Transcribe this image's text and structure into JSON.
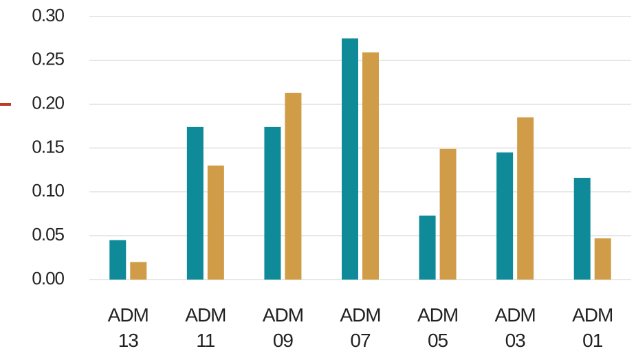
{
  "chart_data": {
    "type": "bar",
    "categories": [
      "ADM 13",
      "ADM 11",
      "ADM 09",
      "ADM 07",
      "ADM 05",
      "ADM 03",
      "ADM 01"
    ],
    "series": [
      {
        "color": "#0f8a98",
        "values": [
          0.045,
          0.174,
          0.174,
          0.275,
          0.073,
          0.145,
          0.116
        ]
      },
      {
        "color": "#d09c48",
        "values": [
          0.02,
          0.13,
          0.213,
          0.259,
          0.149,
          0.185,
          0.047
        ]
      }
    ],
    "ylim": [
      0,
      0.3
    ],
    "yticks": [
      {
        "value": 0,
        "label": "0.00"
      },
      {
        "value": 0.05,
        "label": "0.05"
      },
      {
        "value": 0.1,
        "label": "0.10"
      },
      {
        "value": 0.15,
        "label": "0.15"
      },
      {
        "value": 0.2,
        "label": "0.20"
      },
      {
        "value": 0.25,
        "label": "0.25"
      },
      {
        "value": 0.3,
        "label": "0.30"
      }
    ],
    "grid": true
  }
}
